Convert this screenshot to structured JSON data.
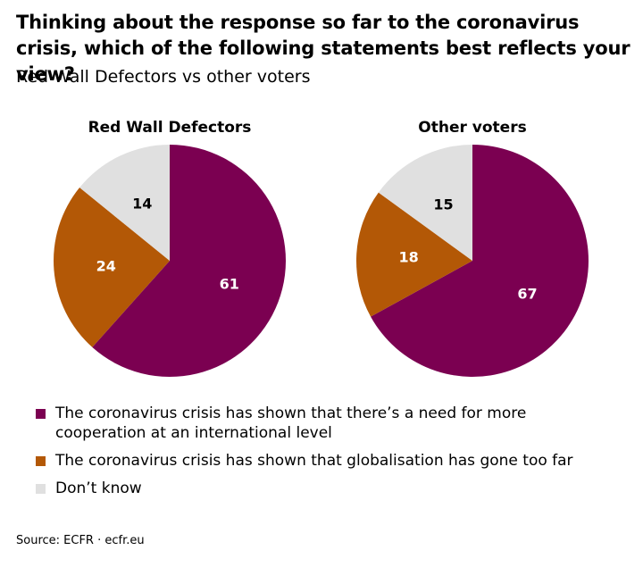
{
  "title": "Thinking about the response so far to the coronavirus crisis, which of the following statements best reflects your view?",
  "subtitle": "Red Wall Defectors vs other voters",
  "source": "Source: ECFR · ecfr.eu",
  "colors": {
    "cooperation": "#7b0051",
    "globalisation": "#b35806",
    "dont_know": "#e0e0e0"
  },
  "legend": [
    {
      "label": "The coronavirus crisis has shown that there’s a need for more cooperation at an international level",
      "color": "#7b0051"
    },
    {
      "label": "The coronavirus crisis has shown that globalisation has gone too far",
      "color": "#b35806"
    },
    {
      "label": "Don’t know",
      "color": "#e0e0e0"
    }
  ],
  "chart_data": [
    {
      "type": "pie",
      "title": "Red Wall Defectors",
      "categories": [
        "The coronavirus crisis has shown that there’s a need for more cooperation at an international level",
        "The coronavirus crisis has shown that globalisation has gone too far",
        "Don’t know"
      ],
      "values": [
        61,
        24,
        14
      ],
      "labels": [
        "61",
        "24",
        "14"
      ],
      "colors": [
        "#7b0051",
        "#b35806",
        "#e0e0e0"
      ]
    },
    {
      "type": "pie",
      "title": "Other voters",
      "categories": [
        "The coronavirus crisis has shown that there’s a need for more cooperation at an international level",
        "The coronavirus crisis has shown that globalisation has gone too far",
        "Don’t know"
      ],
      "values": [
        67,
        18,
        15
      ],
      "labels": [
        "67",
        "18",
        "15"
      ],
      "colors": [
        "#7b0051",
        "#b35806",
        "#e0e0e0"
      ]
    }
  ]
}
